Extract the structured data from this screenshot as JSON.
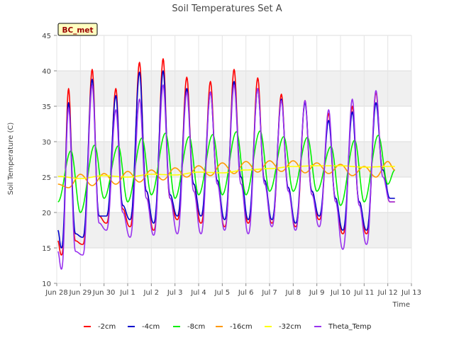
{
  "chart_data": {
    "type": "line",
    "title": "Soil Temperatures Set A",
    "xlabel": "Time",
    "ylabel": "Soil Temperature (C)",
    "station_label": "BC_met",
    "xlim": [
      0,
      15
    ],
    "ylim": [
      10,
      45
    ],
    "x_ticks": [
      {
        "pos": 0,
        "label": "Jun 28"
      },
      {
        "pos": 1,
        "label": "Jun 29"
      },
      {
        "pos": 2,
        "label": "Jun 30"
      },
      {
        "pos": 3,
        "label": "Jul 1"
      },
      {
        "pos": 4,
        "label": "Jul 2"
      },
      {
        "pos": 5,
        "label": "Jul 3"
      },
      {
        "pos": 6,
        "label": "Jul 4"
      },
      {
        "pos": 7,
        "label": "Jul 5"
      },
      {
        "pos": 8,
        "label": "Jul 6"
      },
      {
        "pos": 9,
        "label": "Jul 7"
      },
      {
        "pos": 10,
        "label": "Jul 8"
      },
      {
        "pos": 11,
        "label": "Jul 9"
      },
      {
        "pos": 12,
        "label": "Jul 10"
      },
      {
        "pos": 13,
        "label": "Jul 11"
      },
      {
        "pos": 14,
        "label": "Jul 12"
      },
      {
        "pos": 15,
        "label": "Jul 13"
      }
    ],
    "y_ticks": [
      10,
      15,
      20,
      25,
      30,
      35,
      40,
      45
    ],
    "grid": true,
    "legend_position": "bottom",
    "series": [
      {
        "name": "-2cm",
        "color": "#ff0000",
        "lag": 0.0,
        "exp": 1.35,
        "x": [
          0.05,
          0.2,
          0.5,
          0.8,
          1.1,
          1.5,
          1.8,
          2.1,
          2.5,
          2.8,
          3.1,
          3.5,
          3.8,
          4.1,
          4.5,
          4.8,
          5.1,
          5.5,
          5.8,
          6.1,
          6.5,
          6.8,
          7.1,
          7.5,
          7.8,
          8.1,
          8.5,
          8.8,
          9.1,
          9.5,
          9.8,
          10.1,
          10.5,
          10.8,
          11.1,
          11.5,
          11.8,
          12.1,
          12.5,
          12.8,
          13.1,
          13.5,
          13.8,
          14.1,
          14.3
        ],
        "y": [
          16.0,
          14.0,
          37.5,
          16.0,
          15.5,
          40.2,
          19.5,
          18.5,
          37.5,
          20.5,
          18.0,
          41.2,
          23.0,
          17.5,
          41.7,
          22.0,
          19.0,
          39.1,
          24.0,
          18.5,
          38.5,
          24.5,
          18.0,
          40.2,
          25.0,
          18.5,
          39.0,
          24.5,
          18.5,
          36.7,
          23.5,
          18.0,
          35.8,
          23.0,
          19.0,
          34.0,
          22.0,
          17.0,
          35.0,
          21.5,
          17.0,
          37.0,
          26.0,
          21.5,
          21.5
        ]
      },
      {
        "name": "-4cm",
        "color": "#0000cc",
        "lag": 0.05,
        "exp": 1.25,
        "x": [
          0.05,
          0.2,
          0.5,
          0.8,
          1.1,
          1.5,
          1.8,
          2.1,
          2.5,
          2.8,
          3.1,
          3.5,
          3.8,
          4.1,
          4.5,
          4.8,
          5.1,
          5.5,
          5.8,
          6.1,
          6.5,
          6.8,
          7.1,
          7.5,
          7.8,
          8.1,
          8.5,
          8.8,
          9.1,
          9.5,
          9.8,
          10.1,
          10.5,
          10.8,
          11.1,
          11.5,
          11.8,
          12.1,
          12.5,
          12.8,
          13.1,
          13.5,
          13.8,
          14.1,
          14.3
        ],
        "y": [
          17.5,
          15.0,
          35.5,
          17.0,
          16.5,
          38.8,
          19.5,
          19.5,
          36.5,
          21.0,
          19.0,
          39.8,
          23.0,
          18.5,
          40.0,
          22.5,
          19.5,
          37.5,
          24.0,
          19.5,
          37.0,
          24.5,
          19.0,
          38.5,
          25.0,
          19.0,
          37.5,
          24.5,
          19.0,
          36.0,
          23.5,
          18.5,
          35.5,
          23.0,
          19.5,
          33.0,
          22.0,
          17.5,
          34.2,
          21.5,
          17.5,
          35.5,
          26.0,
          22.0,
          22.0
        ]
      },
      {
        "name": "-8cm",
        "color": "#00ee00",
        "lag": 0.15,
        "exp": 1.0,
        "x": [
          0.05,
          0.6,
          1.0,
          1.6,
          2.0,
          2.6,
          3.0,
          3.6,
          4.0,
          4.6,
          5.0,
          5.6,
          6.0,
          6.6,
          7.0,
          7.6,
          8.0,
          8.6,
          9.0,
          9.6,
          10.0,
          10.6,
          11.0,
          11.6,
          12.0,
          12.6,
          13.0,
          13.6,
          14.0,
          14.3
        ],
        "y": [
          21.5,
          28.7,
          20.0,
          29.5,
          22.0,
          29.4,
          21.5,
          30.5,
          22.5,
          31.2,
          22.0,
          30.7,
          22.5,
          31.0,
          22.5,
          31.4,
          22.5,
          31.5,
          23.0,
          30.7,
          23.0,
          30.6,
          23.0,
          29.3,
          21.0,
          30.2,
          21.5,
          30.9,
          24.0,
          26.0
        ]
      },
      {
        "name": "-16cm",
        "color": "#ff9900",
        "lag": 0.35,
        "exp": 1.0,
        "x": [
          0.05,
          0.5,
          1.0,
          1.5,
          2.0,
          2.5,
          3.0,
          3.5,
          4.0,
          4.5,
          5.0,
          5.5,
          6.0,
          6.5,
          7.0,
          7.5,
          8.0,
          8.5,
          9.0,
          9.5,
          10.0,
          10.5,
          11.0,
          11.5,
          12.0,
          12.5,
          13.0,
          13.5,
          14.0,
          14.3
        ],
        "y": [
          24.0,
          23.5,
          25.4,
          23.8,
          25.5,
          24.0,
          25.8,
          24.3,
          26.0,
          24.6,
          26.3,
          25.0,
          26.6,
          25.2,
          27.0,
          25.5,
          27.2,
          25.7,
          27.3,
          25.8,
          27.3,
          25.6,
          27.0,
          25.5,
          26.8,
          25.2,
          26.5,
          25.0,
          27.2,
          26.0
        ]
      },
      {
        "name": "-32cm",
        "color": "#ffff00",
        "lag": 0.5,
        "exp": 1.0,
        "x": [
          0.05,
          1.0,
          2.0,
          3.0,
          4.0,
          5.0,
          6.0,
          7.0,
          8.0,
          9.0,
          10.0,
          11.0,
          12.0,
          13.0,
          14.0,
          14.3
        ],
        "y": [
          25.1,
          24.8,
          25.2,
          25.0,
          25.4,
          25.3,
          25.7,
          25.6,
          26.0,
          26.2,
          26.5,
          26.6,
          26.6,
          26.4,
          26.5,
          26.5
        ]
      },
      {
        "name": "Theta_Temp",
        "color": "#9933ee",
        "lag": 0.05,
        "exp": 1.2,
        "x": [
          0.05,
          0.2,
          0.5,
          0.8,
          1.1,
          1.5,
          1.8,
          2.1,
          2.5,
          2.8,
          3.1,
          3.5,
          3.8,
          4.1,
          4.5,
          4.8,
          5.1,
          5.5,
          5.8,
          6.1,
          6.5,
          6.8,
          7.1,
          7.5,
          7.8,
          8.1,
          8.5,
          8.8,
          9.1,
          9.5,
          9.8,
          10.1,
          10.5,
          10.8,
          11.1,
          11.5,
          11.8,
          12.1,
          12.5,
          12.8,
          13.1,
          13.5,
          13.8,
          14.1,
          14.3
        ],
        "y": [
          14.5,
          12.0,
          34.8,
          14.5,
          14.0,
          38.0,
          18.5,
          17.5,
          34.5,
          20.0,
          16.5,
          36.0,
          22.0,
          16.8,
          38.0,
          22.0,
          17.0,
          37.0,
          23.0,
          17.0,
          37.0,
          24.0,
          17.5,
          38.0,
          24.0,
          17.0,
          37.5,
          24.0,
          18.0,
          35.8,
          23.0,
          17.5,
          35.8,
          22.5,
          18.0,
          34.5,
          21.5,
          14.8,
          36.0,
          21.0,
          15.5,
          37.2,
          25.0,
          21.5,
          21.5
        ]
      }
    ]
  }
}
